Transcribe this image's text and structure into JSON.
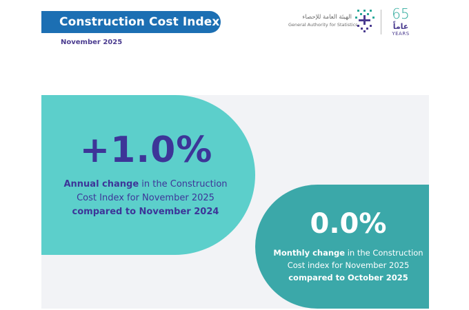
{
  "header": {
    "title": "Construction Cost Index",
    "date": "November 2025"
  },
  "logo": {
    "org_name_ar": "الهيئة العامة للإحصاء",
    "org_name_en": "General Authority for Statistics",
    "anniversary_number": "65",
    "anniversary_ar": "عاماً",
    "anniversary_en": "YEARS",
    "emblem_icon": "star-pattern-icon"
  },
  "annual": {
    "value": "+1.0%",
    "label_bold": "Annual change",
    "label_rest": " in the Construction Cost Index for November 2025",
    "comparison": "compared to November 2024"
  },
  "monthly": {
    "value": "0.0%",
    "label_bold": "Monthly change",
    "label_rest": " in the Construction Cost index for November 2025",
    "comparison": "compared to October 2025"
  },
  "colors": {
    "title_bar": "#1c6fb3",
    "annual_shape": "#5ccfcb",
    "monthly_shape": "#3ba8a9",
    "accent_text": "#3d3598",
    "panel_bg": "#f2f3f6"
  }
}
